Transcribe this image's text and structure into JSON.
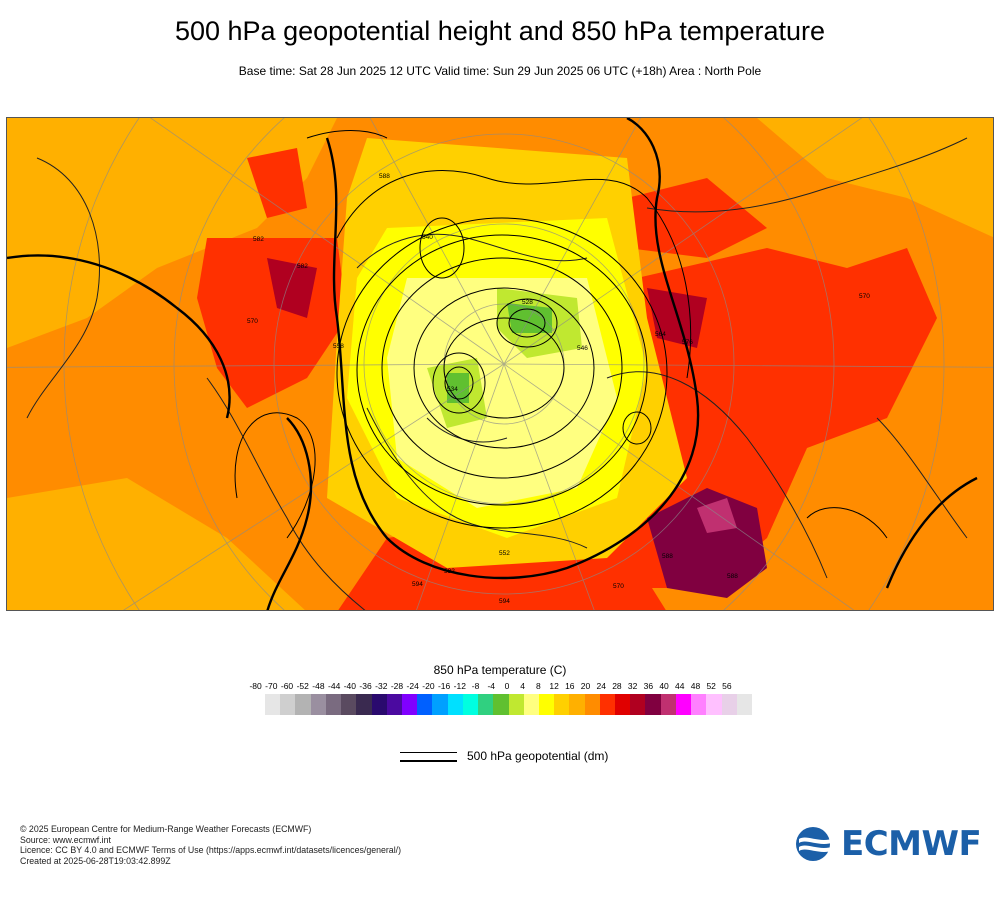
{
  "header": {
    "title": "500 hPa geopotential height and 850 hPa temperature",
    "subtitle": "Base time: Sat 28 Jun 2025 12 UTC Valid time: Sun 29 Jun 2025 06 UTC (+18h) Area : North Pole"
  },
  "map": {
    "projection": "polar stereographic",
    "area": "North Pole",
    "contour_labels": [
      "546",
      "552",
      "558",
      "564",
      "570",
      "576",
      "582",
      "588",
      "594",
      "540",
      "534",
      "528",
      "522"
    ]
  },
  "legend": {
    "title": "850 hPa temperature (C)",
    "ticks": [
      "-80",
      "-70",
      "-60",
      "-52",
      "-48",
      "-44",
      "-40",
      "-36",
      "-32",
      "-28",
      "-24",
      "-20",
      "-16",
      "-12",
      "-8",
      "-4",
      "0",
      "4",
      "8",
      "12",
      "16",
      "20",
      "24",
      "28",
      "32",
      "36",
      "40",
      "44",
      "48",
      "52",
      "56"
    ],
    "colors": [
      "#e6e6e6",
      "#cfcfcf",
      "#b3b3b3",
      "#9a8fa0",
      "#7a6b80",
      "#5a4a60",
      "#3a2a50",
      "#2a0a6e",
      "#4b0aa0",
      "#8000ff",
      "#0060ff",
      "#00a0ff",
      "#00e0ff",
      "#00ffe0",
      "#30d080",
      "#60c030",
      "#c0e830",
      "#ffff80",
      "#ffff00",
      "#ffd000",
      "#ffb000",
      "#ff8c00",
      "#ff3000",
      "#e00000",
      "#b00020",
      "#800040",
      "#c03070",
      "#ff00ff",
      "#ff80ff",
      "#ffc0ff",
      "#e8d0e8",
      "#e6e6e6"
    ],
    "geopotential_label": "500 hPa geopotential (dm)"
  },
  "footer": {
    "lines": [
      "© 2025 European Centre for Medium-Range Weather Forecasts (ECMWF)",
      "Source: www.ecmwf.int",
      "Licence: CC BY 4.0 and ECMWF Terms of Use (https://apps.ecmwf.int/datasets/licences/general/)",
      "Created at 2025-06-28T19:03:42.899Z"
    ]
  },
  "logo": {
    "text": "ECMWF",
    "color": "#1b5fa8"
  }
}
